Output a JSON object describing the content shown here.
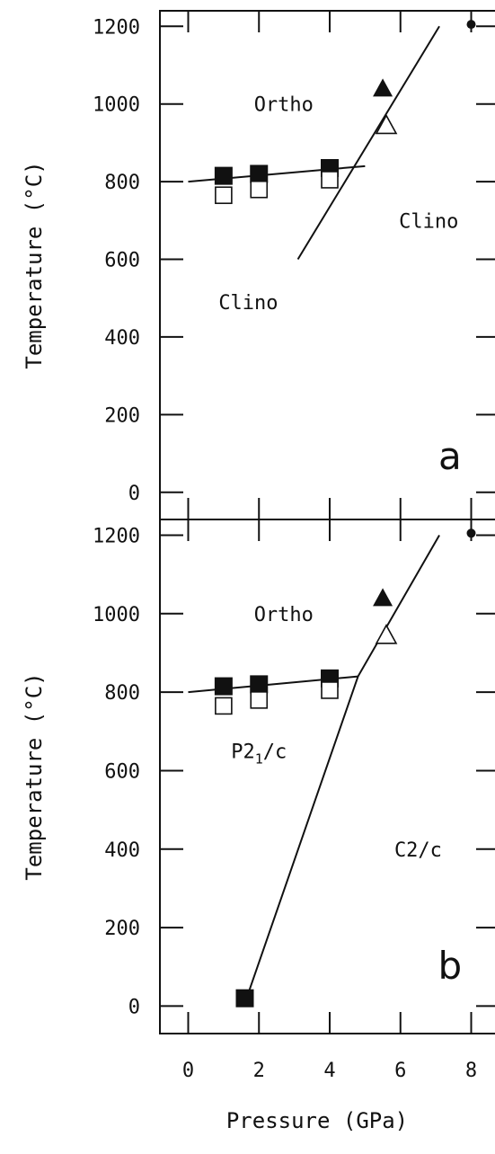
{
  "chart_data": [
    {
      "type": "scatter",
      "panel_label": "a",
      "ylabel": "Temperature (°C)",
      "xlabel": "",
      "xlim": [
        -0.8,
        8.8
      ],
      "ylim": [
        -70,
        1240
      ],
      "y_ticks": [
        0,
        200,
        400,
        600,
        800,
        1000,
        1200
      ],
      "x_ticks": [
        0,
        2,
        4,
        6,
        8
      ],
      "x_tick_labels_shown": false,
      "series": [
        {
          "marker": "filled-square",
          "x": [
            1,
            2,
            4
          ],
          "y": [
            815,
            820,
            835
          ]
        },
        {
          "marker": "open-square",
          "x": [
            1,
            2,
            4
          ],
          "y": [
            765,
            780,
            805
          ]
        },
        {
          "marker": "filled-triangle",
          "x": [
            5.5
          ],
          "y": [
            1040
          ]
        },
        {
          "marker": "open-triangle",
          "x": [
            5.6
          ],
          "y": [
            945
          ]
        },
        {
          "marker": "filled-circle",
          "x": [
            8
          ],
          "y": [
            1205
          ]
        }
      ],
      "lines": [
        {
          "x": [
            0,
            5
          ],
          "y": [
            800,
            840
          ]
        },
        {
          "x": [
            3.1,
            7.1
          ],
          "y": [
            600,
            1200
          ]
        }
      ],
      "annotations": [
        {
          "text": "Ortho",
          "x": 2.7,
          "y": 1000
        },
        {
          "text": "Clino",
          "x": 6.8,
          "y": 700
        },
        {
          "text": "Clino",
          "x": 1.7,
          "y": 490
        },
        {
          "text": "a",
          "x": 7.4,
          "y": 60
        }
      ]
    },
    {
      "type": "scatter",
      "panel_label": "b",
      "ylabel": "Temperature (°C)",
      "xlabel": "Pressure (GPa)",
      "xlim": [
        -0.8,
        8.8
      ],
      "ylim": [
        -70,
        1240
      ],
      "y_ticks": [
        0,
        200,
        400,
        600,
        800,
        1000,
        1200
      ],
      "x_ticks": [
        0,
        2,
        4,
        6,
        8
      ],
      "x_tick_labels_shown": true,
      "series": [
        {
          "marker": "filled-square",
          "x": [
            1,
            2,
            4,
            1.6
          ],
          "y": [
            815,
            820,
            835,
            20
          ]
        },
        {
          "marker": "open-square",
          "x": [
            1,
            2,
            4
          ],
          "y": [
            765,
            780,
            805
          ]
        },
        {
          "marker": "filled-triangle",
          "x": [
            5.5
          ],
          "y": [
            1040
          ]
        },
        {
          "marker": "open-triangle",
          "x": [
            5.6
          ],
          "y": [
            945
          ]
        },
        {
          "marker": "filled-circle",
          "x": [
            8
          ],
          "y": [
            1205
          ]
        }
      ],
      "lines": [
        {
          "x": [
            0,
            4.8
          ],
          "y": [
            800,
            840
          ]
        },
        {
          "x": [
            1.65,
            4.8,
            7.1
          ],
          "y": [
            20,
            840,
            1200
          ]
        }
      ],
      "annotations": [
        {
          "text": "Ortho",
          "x": 2.7,
          "y": 1000
        },
        {
          "text": "P2",
          "subscript": "1",
          "suffix": "/c",
          "x": 2.0,
          "y": 650
        },
        {
          "text": "C2/c",
          "x": 6.5,
          "y": 400
        },
        {
          "text": "b",
          "x": 7.4,
          "y": 70
        }
      ]
    }
  ]
}
